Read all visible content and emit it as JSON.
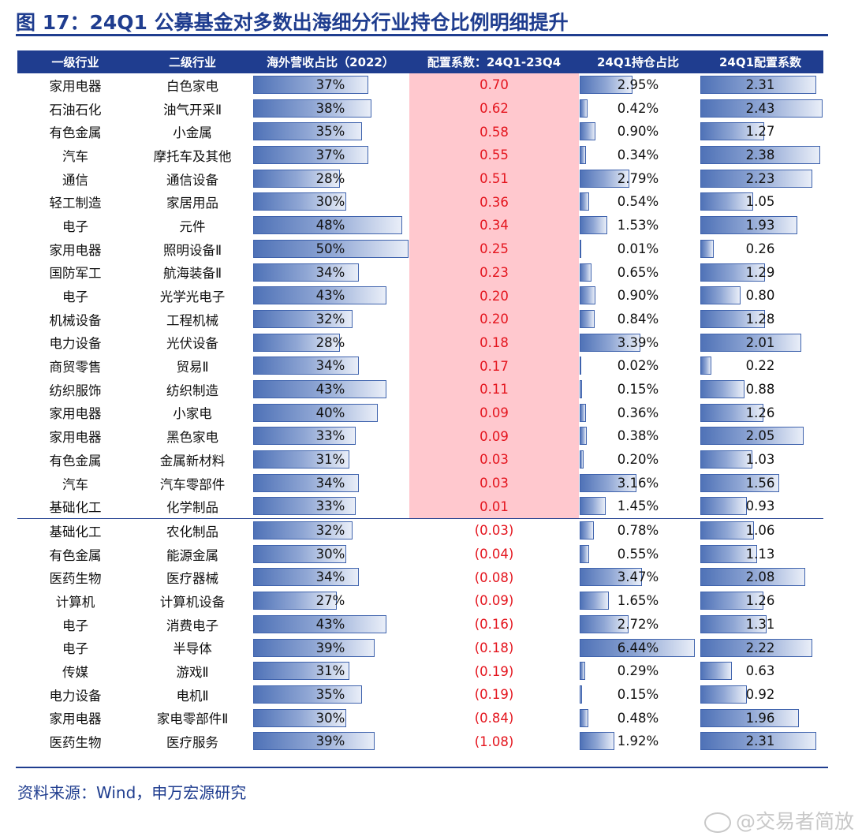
{
  "title": "图 17：24Q1 公募基金对多数出海细分行业持仓比例明细提升",
  "columns": [
    "一级行业",
    "二级行业",
    "海外营收占比（2022）",
    "配置系数：24Q1-23Q4",
    "24Q1持仓占比",
    "24Q1配置系数"
  ],
  "colors": {
    "header_bg": "#1f3d8f",
    "pink": "#ffc8ce",
    "red_text": "#e4141d"
  },
  "rows": [
    {
      "l1": "家用电器",
      "l2": "白色家电",
      "overseas": "37%",
      "coef": "0.70",
      "holding": "2.95%",
      "alloc": "2.31"
    },
    {
      "l1": "石油石化",
      "l2": "油气开采Ⅱ",
      "overseas": "38%",
      "coef": "0.62",
      "holding": "0.42%",
      "alloc": "2.43"
    },
    {
      "l1": "有色金属",
      "l2": "小金属",
      "overseas": "35%",
      "coef": "0.58",
      "holding": "0.90%",
      "alloc": "1.27"
    },
    {
      "l1": "汽车",
      "l2": "摩托车及其他",
      "overseas": "37%",
      "coef": "0.55",
      "holding": "0.34%",
      "alloc": "2.38"
    },
    {
      "l1": "通信",
      "l2": "通信设备",
      "overseas": "28%",
      "coef": "0.51",
      "holding": "2.79%",
      "alloc": "2.23"
    },
    {
      "l1": "轻工制造",
      "l2": "家居用品",
      "overseas": "30%",
      "coef": "0.36",
      "holding": "0.54%",
      "alloc": "1.05"
    },
    {
      "l1": "电子",
      "l2": "元件",
      "overseas": "48%",
      "coef": "0.34",
      "holding": "1.53%",
      "alloc": "1.93"
    },
    {
      "l1": "家用电器",
      "l2": "照明设备Ⅱ",
      "overseas": "50%",
      "coef": "0.25",
      "holding": "0.01%",
      "alloc": "0.26"
    },
    {
      "l1": "国防军工",
      "l2": "航海装备Ⅱ",
      "overseas": "34%",
      "coef": "0.23",
      "holding": "0.65%",
      "alloc": "1.29"
    },
    {
      "l1": "电子",
      "l2": "光学光电子",
      "overseas": "43%",
      "coef": "0.20",
      "holding": "0.90%",
      "alloc": "0.80"
    },
    {
      "l1": "机械设备",
      "l2": "工程机械",
      "overseas": "32%",
      "coef": "0.20",
      "holding": "0.84%",
      "alloc": "1.28"
    },
    {
      "l1": "电力设备",
      "l2": "光伏设备",
      "overseas": "28%",
      "coef": "0.18",
      "holding": "3.39%",
      "alloc": "2.01"
    },
    {
      "l1": "商贸零售",
      "l2": "贸易Ⅱ",
      "overseas": "34%",
      "coef": "0.17",
      "holding": "0.02%",
      "alloc": "0.22"
    },
    {
      "l1": "纺织服饰",
      "l2": "纺织制造",
      "overseas": "43%",
      "coef": "0.11",
      "holding": "0.15%",
      "alloc": "0.88"
    },
    {
      "l1": "家用电器",
      "l2": "小家电",
      "overseas": "40%",
      "coef": "0.09",
      "holding": "0.36%",
      "alloc": "1.26"
    },
    {
      "l1": "家用电器",
      "l2": "黑色家电",
      "overseas": "33%",
      "coef": "0.09",
      "holding": "0.38%",
      "alloc": "2.05"
    },
    {
      "l1": "有色金属",
      "l2": "金属新材料",
      "overseas": "31%",
      "coef": "0.03",
      "holding": "0.20%",
      "alloc": "1.03"
    },
    {
      "l1": "汽车",
      "l2": "汽车零部件",
      "overseas": "34%",
      "coef": "0.03",
      "holding": "3.16%",
      "alloc": "1.56"
    },
    {
      "l1": "基础化工",
      "l2": "化学制品",
      "overseas": "33%",
      "coef": "0.01",
      "holding": "1.45%",
      "alloc": "0.93"
    },
    {
      "l1": "基础化工",
      "l2": "农化制品",
      "overseas": "32%",
      "coef": "(0.03)",
      "holding": "0.78%",
      "alloc": "1.06"
    },
    {
      "l1": "有色金属",
      "l2": "能源金属",
      "overseas": "30%",
      "coef": "(0.04)",
      "holding": "0.55%",
      "alloc": "1.13"
    },
    {
      "l1": "医药生物",
      "l2": "医疗器械",
      "overseas": "34%",
      "coef": "(0.08)",
      "holding": "3.47%",
      "alloc": "2.08"
    },
    {
      "l1": "计算机",
      "l2": "计算机设备",
      "overseas": "27%",
      "coef": "(0.09)",
      "holding": "1.65%",
      "alloc": "1.26"
    },
    {
      "l1": "电子",
      "l2": "消费电子",
      "overseas": "43%",
      "coef": "(0.16)",
      "holding": "2.72%",
      "alloc": "1.31"
    },
    {
      "l1": "电子",
      "l2": "半导体",
      "overseas": "39%",
      "coef": "(0.18)",
      "holding": "6.44%",
      "alloc": "2.22"
    },
    {
      "l1": "传媒",
      "l2": "游戏Ⅱ",
      "overseas": "31%",
      "coef": "(0.19)",
      "holding": "0.29%",
      "alloc": "0.63"
    },
    {
      "l1": "电力设备",
      "l2": "电机Ⅱ",
      "overseas": "35%",
      "coef": "(0.19)",
      "holding": "0.15%",
      "alloc": "0.92"
    },
    {
      "l1": "家用电器",
      "l2": "家电零部件Ⅱ",
      "overseas": "30%",
      "coef": "(0.84)",
      "holding": "0.48%",
      "alloc": "1.96"
    },
    {
      "l1": "医药生物",
      "l2": "医疗服务",
      "overseas": "39%",
      "coef": "(1.08)",
      "holding": "1.92%",
      "alloc": "2.31"
    }
  ],
  "source": "资料来源：Wind，申万宏源研究",
  "watermark": "@交易者简放"
}
